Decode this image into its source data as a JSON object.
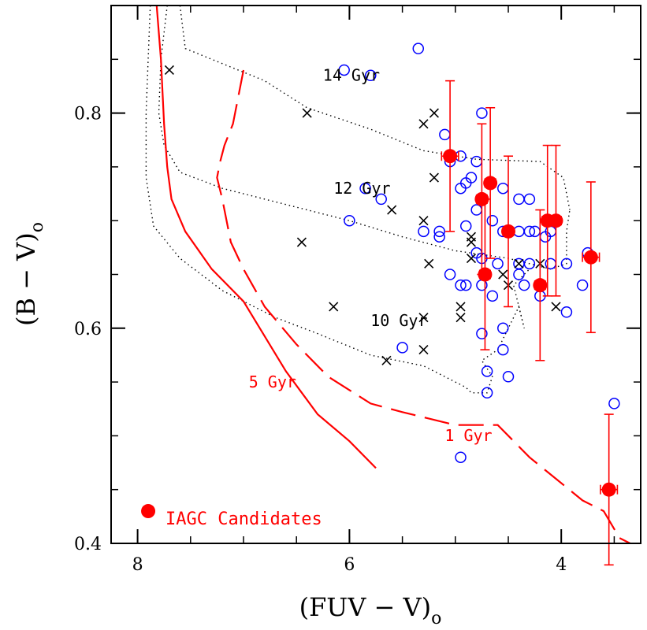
{
  "chart_data": {
    "type": "scatter",
    "xlabel": "(FUV − V)",
    "xlabel_subscript": "o",
    "ylabel": "(B − V)",
    "ylabel_subscript": "o",
    "xlim": [
      8.25,
      3.25
    ],
    "ylim": [
      0.4,
      0.9
    ],
    "x_ticks": [
      {
        "value": 8,
        "label": "8"
      },
      {
        "value": 6,
        "label": "6"
      },
      {
        "value": 4,
        "label": "4"
      }
    ],
    "y_ticks": [
      {
        "value": 0.4,
        "label": "0.4"
      },
      {
        "value": 0.6,
        "label": "0.6"
      },
      {
        "value": 0.8,
        "label": "0.8"
      }
    ],
    "x_minor_step": 0.5,
    "y_minor_step": 0.05,
    "colors": {
      "red": "#ff0000",
      "blue": "#0000ff",
      "black": "#000000"
    },
    "open_circles": [
      [
        5.35,
        0.86
      ],
      [
        6.05,
        0.84
      ],
      [
        5.8,
        0.835
      ],
      [
        4.75,
        0.8
      ],
      [
        5.1,
        0.78
      ],
      [
        4.95,
        0.76
      ],
      [
        5.05,
        0.755
      ],
      [
        4.8,
        0.755
      ],
      [
        4.85,
        0.74
      ],
      [
        4.55,
        0.73
      ],
      [
        4.4,
        0.72
      ],
      [
        4.3,
        0.72
      ],
      [
        5.85,
        0.73
      ],
      [
        5.7,
        0.72
      ],
      [
        4.95,
        0.73
      ],
      [
        4.9,
        0.735
      ],
      [
        4.8,
        0.71
      ],
      [
        4.65,
        0.7
      ],
      [
        6.0,
        0.7
      ],
      [
        5.3,
        0.69
      ],
      [
        5.15,
        0.69
      ],
      [
        5.15,
        0.685
      ],
      [
        4.9,
        0.695
      ],
      [
        4.4,
        0.69
      ],
      [
        4.55,
        0.69
      ],
      [
        4.3,
        0.69
      ],
      [
        4.25,
        0.69
      ],
      [
        4.15,
        0.685
      ],
      [
        4.1,
        0.69
      ],
      [
        3.75,
        0.67
      ],
      [
        4.8,
        0.67
      ],
      [
        4.75,
        0.665
      ],
      [
        4.4,
        0.66
      ],
      [
        4.3,
        0.66
      ],
      [
        4.1,
        0.66
      ],
      [
        3.95,
        0.66
      ],
      [
        5.05,
        0.65
      ],
      [
        4.6,
        0.66
      ],
      [
        4.4,
        0.65
      ],
      [
        4.35,
        0.64
      ],
      [
        4.95,
        0.64
      ],
      [
        4.9,
        0.64
      ],
      [
        4.75,
        0.64
      ],
      [
        4.65,
        0.63
      ],
      [
        4.2,
        0.63
      ],
      [
        3.8,
        0.64
      ],
      [
        4.75,
        0.595
      ],
      [
        4.55,
        0.6
      ],
      [
        4.55,
        0.58
      ],
      [
        5.5,
        0.582
      ],
      [
        4.7,
        0.56
      ],
      [
        4.5,
        0.555
      ],
      [
        4.7,
        0.54
      ],
      [
        3.95,
        0.615
      ],
      [
        3.5,
        0.53
      ],
      [
        4.95,
        0.48
      ]
    ],
    "crosses": [
      [
        7.7,
        0.84
      ],
      [
        6.4,
        0.8
      ],
      [
        5.3,
        0.79
      ],
      [
        5.2,
        0.8
      ],
      [
        5.05,
        0.76
      ],
      [
        5.2,
        0.74
      ],
      [
        5.6,
        0.71
      ],
      [
        5.3,
        0.7
      ],
      [
        4.85,
        0.685
      ],
      [
        4.85,
        0.68
      ],
      [
        6.45,
        0.68
      ],
      [
        5.25,
        0.66
      ],
      [
        4.85,
        0.665
      ],
      [
        4.55,
        0.65
      ],
      [
        4.4,
        0.66
      ],
      [
        4.2,
        0.66
      ],
      [
        4.5,
        0.64
      ],
      [
        4.2,
        0.64
      ],
      [
        6.15,
        0.62
      ],
      [
        4.95,
        0.62
      ],
      [
        4.95,
        0.61
      ],
      [
        4.05,
        0.62
      ],
      [
        5.3,
        0.61
      ],
      [
        5.3,
        0.58
      ],
      [
        5.65,
        0.57
      ]
    ],
    "iagc_candidates": [
      {
        "x": 5.05,
        "y": 0.76,
        "xerr": 0.08,
        "yerr_up": 0.07,
        "yerr_down": 0.07
      },
      {
        "x": 4.75,
        "y": 0.72,
        "xerr": 0.05,
        "yerr_up": 0.07,
        "yerr_down": 0.07
      },
      {
        "x": 4.67,
        "y": 0.735,
        "xerr": 0.05,
        "yerr_up": 0.07,
        "yerr_down": 0.07
      },
      {
        "x": 4.72,
        "y": 0.65,
        "xerr": 0.05,
        "yerr_up": 0.07,
        "yerr_down": 0.07
      },
      {
        "x": 4.5,
        "y": 0.69,
        "xerr": 0.05,
        "yerr_up": 0.07,
        "yerr_down": 0.07
      },
      {
        "x": 4.13,
        "y": 0.7,
        "xerr": 0.05,
        "yerr_up": 0.07,
        "yerr_down": 0.07
      },
      {
        "x": 4.05,
        "y": 0.7,
        "xerr": 0.05,
        "yerr_up": 0.07,
        "yerr_down": 0.07
      },
      {
        "x": 4.2,
        "y": 0.64,
        "xerr": 0.05,
        "yerr_up": 0.07,
        "yerr_down": 0.07
      },
      {
        "x": 3.72,
        "y": 0.666,
        "xerr": 0.08,
        "yerr_up": 0.07,
        "yerr_down": 0.07
      },
      {
        "x": 3.55,
        "y": 0.45,
        "xerr": 0.08,
        "yerr_up": 0.07,
        "yerr_down": 0.07
      }
    ],
    "model_5gyr": [
      [
        7.82,
        0.9
      ],
      [
        7.78,
        0.85
      ],
      [
        7.75,
        0.79
      ],
      [
        7.72,
        0.75
      ],
      [
        7.68,
        0.72
      ],
      [
        7.55,
        0.69
      ],
      [
        7.3,
        0.655
      ],
      [
        7.0,
        0.625
      ],
      [
        6.6,
        0.56
      ],
      [
        6.3,
        0.52
      ],
      [
        6.0,
        0.495
      ],
      [
        5.75,
        0.47
      ]
    ],
    "model_1gyr_dashed": [
      [
        7.0,
        0.84
      ],
      [
        7.1,
        0.79
      ],
      [
        7.18,
        0.77
      ],
      [
        7.22,
        0.755
      ],
      [
        7.25,
        0.74
      ],
      [
        7.2,
        0.72
      ],
      [
        7.12,
        0.68
      ],
      [
        7.0,
        0.655
      ],
      [
        6.8,
        0.62
      ],
      [
        6.5,
        0.585
      ],
      [
        6.2,
        0.555
      ],
      [
        5.8,
        0.53
      ],
      [
        5.5,
        0.522
      ],
      [
        5.0,
        0.51
      ],
      [
        4.6,
        0.51
      ],
      [
        4.3,
        0.48
      ],
      [
        4.05,
        0.46
      ],
      [
        3.8,
        0.44
      ],
      [
        3.6,
        0.43
      ],
      [
        3.45,
        0.405
      ],
      [
        3.35,
        0.4
      ]
    ],
    "isochrones_dotted": [
      [
        [
          7.6,
          0.9
        ],
        [
          7.55,
          0.86
        ],
        [
          7.3,
          0.85
        ],
        [
          6.8,
          0.83
        ],
        [
          6.4,
          0.805
        ],
        [
          5.8,
          0.785
        ],
        [
          5.3,
          0.765
        ],
        [
          4.8,
          0.757
        ],
        [
          4.2,
          0.755
        ],
        [
          3.98,
          0.74
        ],
        [
          3.92,
          0.71
        ]
      ],
      [
        [
          7.72,
          0.9
        ],
        [
          7.78,
          0.85
        ],
        [
          7.8,
          0.8
        ],
        [
          7.75,
          0.77
        ],
        [
          7.6,
          0.745
        ],
        [
          7.2,
          0.73
        ],
        [
          6.6,
          0.715
        ],
        [
          6.0,
          0.7
        ],
        [
          5.5,
          0.685
        ],
        [
          5.0,
          0.672
        ],
        [
          4.5,
          0.665
        ],
        [
          4.1,
          0.655
        ],
        [
          3.95,
          0.66
        ],
        [
          3.95,
          0.69
        ],
        [
          3.92,
          0.71
        ]
      ],
      [
        [
          7.88,
          0.9
        ],
        [
          7.9,
          0.85
        ],
        [
          7.92,
          0.8
        ],
        [
          7.92,
          0.74
        ],
        [
          7.85,
          0.695
        ],
        [
          7.6,
          0.665
        ],
        [
          7.2,
          0.635
        ],
        [
          6.7,
          0.61
        ],
        [
          6.3,
          0.595
        ],
        [
          5.8,
          0.575
        ],
        [
          5.3,
          0.565
        ],
        [
          4.9,
          0.545
        ],
        [
          4.85,
          0.54
        ],
        [
          4.7,
          0.54
        ],
        [
          4.65,
          0.555
        ],
        [
          4.75,
          0.57
        ],
        [
          4.6,
          0.58
        ],
        [
          4.4,
          0.62
        ],
        [
          4.35,
          0.6
        ],
        [
          4.45,
          0.64
        ],
        [
          4.3,
          0.655
        ]
      ]
    ],
    "annotations": [
      {
        "text": "14 Gyr",
        "x": 6.25,
        "y": 0.83,
        "color": "#000000"
      },
      {
        "text": "12 Gyr",
        "x": 6.15,
        "y": 0.725,
        "color": "#000000"
      },
      {
        "text": "10 Gyr",
        "x": 5.8,
        "y": 0.602,
        "color": "#000000"
      },
      {
        "text": "5 Gyr",
        "x": 6.95,
        "y": 0.545,
        "color": "#ff0000"
      },
      {
        "text": "1 Gyr",
        "x": 5.1,
        "y": 0.495,
        "color": "#ff0000"
      }
    ],
    "legend": {
      "label": "IAGC Candidates",
      "position": "bottom-left",
      "x": 7.9,
      "y": 0.43
    }
  }
}
